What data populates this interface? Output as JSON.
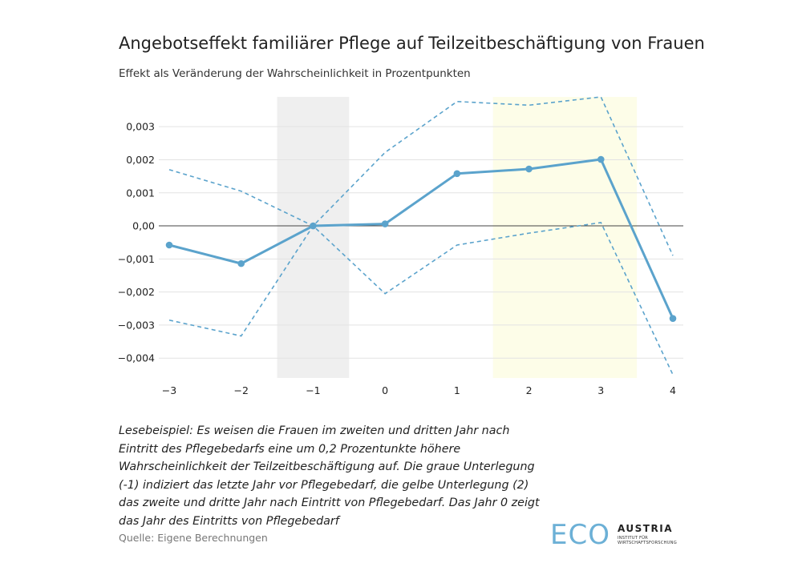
{
  "header": {
    "title": "Angebotseffekt familiärer Pflege auf Teilzeitbeschäftigung von Frauen",
    "subtitle": "Effekt als Veränderung der Wahrscheinlichkeit in Prozentpunkten"
  },
  "chart_data": {
    "type": "line",
    "x": [
      -3,
      -2,
      -1,
      0,
      1,
      2,
      3,
      4
    ],
    "x_tick_labels": [
      "−3",
      "−2",
      "−1",
      "0",
      "1",
      "2",
      "3",
      "4"
    ],
    "y_ticks": [
      0.003,
      0.002,
      0.001,
      0.0,
      -0.001,
      -0.002,
      -0.003,
      -0.004
    ],
    "y_tick_labels": [
      "0,003",
      "0,002",
      "0,001",
      "0,00",
      "−0,001",
      "−0,002",
      "−0,003",
      "−0,004"
    ],
    "ylim": [
      -0.0046,
      0.0039
    ],
    "xlim": [
      -3,
      4
    ],
    "grid": true,
    "highlights": [
      {
        "from": -1.5,
        "to": -0.5,
        "color": "#efefef"
      },
      {
        "from": 1.5,
        "to": 3.5,
        "color": "#fdfde8"
      }
    ],
    "series": [
      {
        "role": "estimate",
        "values": [
          -0.00058,
          -0.00114,
          0.0,
          6e-05,
          0.00158,
          0.00172,
          0.00201,
          -0.0028
        ],
        "color": "#5ba3cc",
        "style": "solid-markers"
      },
      {
        "role": "upper-bound",
        "values": [
          0.0017,
          0.00105,
          0.0,
          0.00222,
          0.00376,
          0.00365,
          0.0039,
          -0.0009
        ],
        "color": "#5ba3cc",
        "style": "dashed"
      },
      {
        "role": "lower-bound",
        "values": [
          -0.00285,
          -0.00333,
          0.0,
          -0.00205,
          -0.00058,
          -0.00022,
          0.0001,
          -0.0045
        ],
        "color": "#5ba3cc",
        "style": "dashed"
      }
    ]
  },
  "note": {
    "lines": [
      "Lesebeispiel: Es weisen die Frauen im zweiten und dritten Jahr nach",
      "Eintritt des Pflegebedarfs eine um 0,2 Prozentunkte höhere",
      "Wahrscheinlichkeit der Teilzeitbeschäftigung auf. Die graue Unterlegung",
      "(-1) indiziert das letzte Jahr vor Pflegebedarf, die gelbe Unterlegung (2)",
      "das zweite und dritte Jahr nach Eintritt von Pflegebedarf. Das Jahr 0 zeigt",
      "das Jahr des Eintritts von Pflegebedarf"
    ]
  },
  "source": "Quelle: Eigene Berechnungen",
  "logo": {
    "eco": "ECO",
    "austria": "AUSTRIA",
    "sub_line1": "INSTITUT FÜR",
    "sub_line2": "WIRTSCHAFTSFORSCHUNG"
  }
}
